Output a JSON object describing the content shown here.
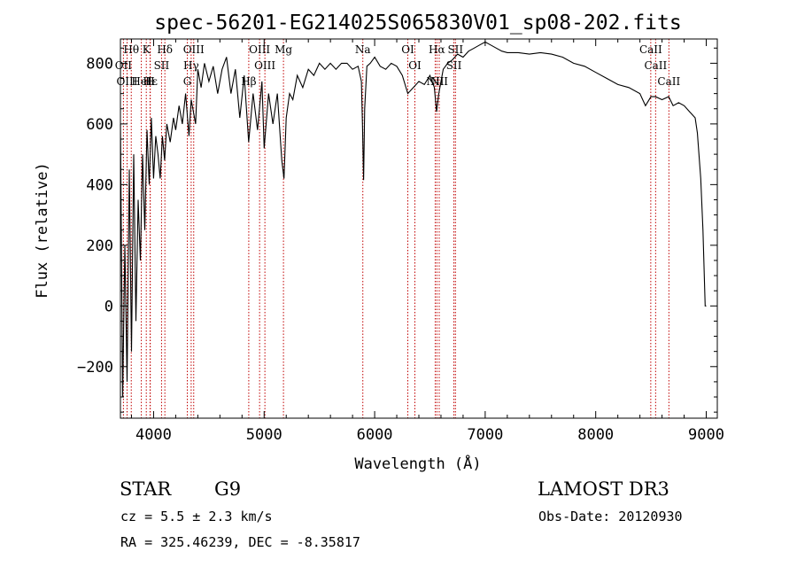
{
  "chart_data": {
    "type": "line",
    "title": "spec-56201-EG214025S065830V01_sp08-202.fits",
    "xlabel": "Wavelength (Å)",
    "ylabel": "Flux (relative)",
    "xlim": [
      3700,
      9100
    ],
    "ylim": [
      -370,
      880
    ],
    "xticks": [
      4000,
      5000,
      6000,
      7000,
      8000,
      9000
    ],
    "yticks": [
      -200,
      0,
      200,
      400,
      600,
      800
    ],
    "grid": false,
    "series": [
      {
        "name": "flux",
        "color": "#000000",
        "x": [
          3700,
          3720,
          3740,
          3760,
          3780,
          3800,
          3820,
          3840,
          3860,
          3880,
          3900,
          3920,
          3940,
          3960,
          3980,
          4000,
          4020,
          4040,
          4060,
          4080,
          4100,
          4120,
          4150,
          4180,
          4200,
          4230,
          4260,
          4290,
          4320,
          4340,
          4360,
          4380,
          4400,
          4430,
          4460,
          4500,
          4540,
          4580,
          4620,
          4660,
          4700,
          4740,
          4780,
          4820,
          4860,
          4900,
          4940,
          4980,
          5000,
          5040,
          5080,
          5120,
          5160,
          5180,
          5200,
          5230,
          5260,
          5300,
          5350,
          5400,
          5450,
          5500,
          5550,
          5600,
          5650,
          5700,
          5750,
          5800,
          5850,
          5880,
          5890,
          5900,
          5910,
          5930,
          5960,
          6000,
          6050,
          6100,
          6150,
          6200,
          6250,
          6300,
          6350,
          6400,
          6450,
          6500,
          6540,
          6560,
          6580,
          6620,
          6660,
          6700,
          6750,
          6800,
          6850,
          6900,
          6950,
          7000,
          7050,
          7100,
          7150,
          7200,
          7300,
          7400,
          7500,
          7600,
          7700,
          7800,
          7900,
          8000,
          8100,
          8200,
          8300,
          8400,
          8450,
          8500,
          8540,
          8600,
          8660,
          8700,
          8750,
          8800,
          8850,
          8900,
          8920,
          8950,
          8970,
          8990,
          9000
        ],
        "y": [
          600,
          -300,
          200,
          -250,
          450,
          -150,
          500,
          -50,
          350,
          150,
          500,
          250,
          580,
          400,
          620,
          420,
          560,
          500,
          420,
          560,
          480,
          600,
          540,
          620,
          580,
          660,
          600,
          700,
          560,
          680,
          640,
          600,
          780,
          720,
          800,
          740,
          790,
          700,
          780,
          820,
          700,
          780,
          620,
          760,
          540,
          700,
          580,
          740,
          520,
          700,
          600,
          700,
          480,
          420,
          620,
          700,
          680,
          760,
          720,
          780,
          760,
          800,
          780,
          800,
          780,
          800,
          800,
          780,
          790,
          740,
          600,
          415,
          650,
          790,
          800,
          820,
          790,
          780,
          800,
          790,
          760,
          700,
          720,
          740,
          730,
          760,
          720,
          640,
          700,
          780,
          800,
          810,
          830,
          820,
          840,
          850,
          860,
          870,
          860,
          850,
          840,
          835,
          835,
          830,
          835,
          830,
          820,
          800,
          790,
          770,
          750,
          730,
          720,
          700,
          660,
          690,
          690,
          680,
          690,
          660,
          670,
          660,
          640,
          620,
          570,
          420,
          250,
          0,
          0
        ]
      }
    ],
    "lines": [
      {
        "label": "Hθ",
        "x": 3798
      },
      {
        "label": "K",
        "x": 3934
      },
      {
        "label": "Hδ",
        "x": 4102
      },
      {
        "label": "OII",
        "x": 3727
      },
      {
        "label": "HeI",
        "x": 3889
      },
      {
        "label": "SII",
        "x": 4072
      },
      {
        "label": "OIII",
        "x": 3760
      },
      {
        "label": "Hε",
        "x": 3970
      },
      {
        "label": "H",
        "x": 3968
      },
      {
        "label": "OIII",
        "x": 4363
      },
      {
        "label": "Hγ",
        "x": 4340
      },
      {
        "label": "G",
        "x": 4305
      },
      {
        "label": "OIII",
        "x": 4959
      },
      {
        "label": "OIII",
        "x": 5007
      },
      {
        "label": "Hβ",
        "x": 4861
      },
      {
        "label": "Mg",
        "x": 5175
      },
      {
        "label": "Na",
        "x": 5893
      },
      {
        "label": "OI",
        "x": 6300
      },
      {
        "label": "OI",
        "x": 6364
      },
      {
        "label": "Hα",
        "x": 6563
      },
      {
        "label": "SII",
        "x": 6717
      },
      {
        "label": "NII",
        "x": 6548
      },
      {
        "label": "NII",
        "x": 6584
      },
      {
        "label": "SII",
        "x": 6731
      },
      {
        "label": "CaII",
        "x": 8498
      },
      {
        "label": "CaII",
        "x": 8542
      },
      {
        "label": "CaII",
        "x": 8662
      }
    ]
  },
  "info": {
    "object_class": "STAR",
    "subclass": "G9",
    "survey": "LAMOST DR3",
    "cz": "cz = 5.5 ± 2.3 km/s",
    "obs_date": "Obs-Date: 20120930",
    "radec": "RA = 325.46239, DEC =  -8.35817"
  }
}
